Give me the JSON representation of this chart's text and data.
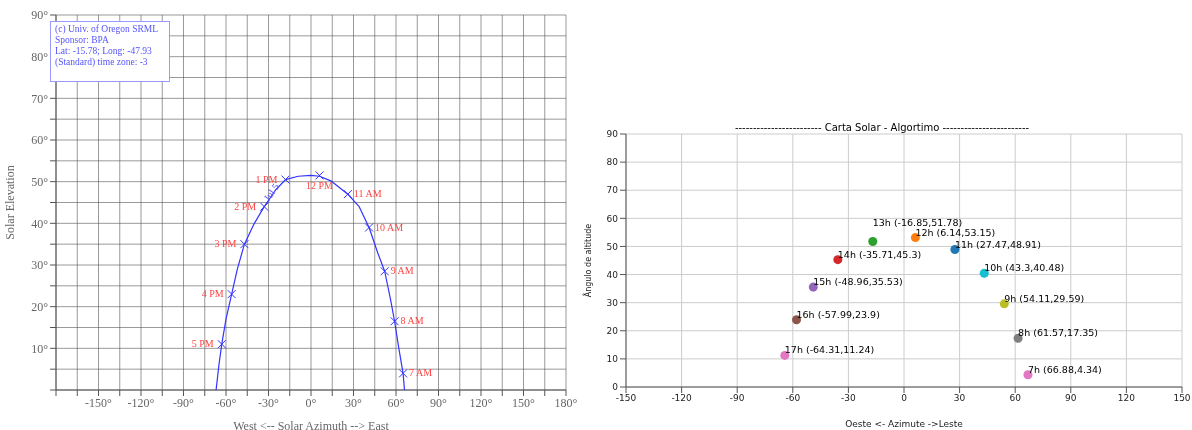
{
  "chart_data": [
    {
      "type": "line",
      "xlabel": "West <-- Solar Azimuth --> East",
      "ylabel": "Solar Elevation",
      "xlim": [
        -180,
        180
      ],
      "ylim": [
        0,
        90
      ],
      "xticks": [
        {
          "value": -180,
          "label": null
        },
        {
          "value": -165,
          "label": null
        },
        {
          "value": -150,
          "label": "-150°"
        },
        {
          "value": -135,
          "label": null
        },
        {
          "value": -120,
          "label": "-120°"
        },
        {
          "value": -105,
          "label": null
        },
        {
          "value": -90,
          "label": "-90°"
        },
        {
          "value": -75,
          "label": null
        },
        {
          "value": -60,
          "label": "-60°"
        },
        {
          "value": -45,
          "label": null
        },
        {
          "value": -30,
          "label": "-30°"
        },
        {
          "value": -15,
          "label": null
        },
        {
          "value": 0,
          "label": "0°"
        },
        {
          "value": 15,
          "label": null
        },
        {
          "value": 30,
          "label": "30°"
        },
        {
          "value": 45,
          "label": null
        },
        {
          "value": 60,
          "label": "60°"
        },
        {
          "value": 75,
          "label": null
        },
        {
          "value": 90,
          "label": "90°"
        },
        {
          "value": 105,
          "label": null
        },
        {
          "value": 120,
          "label": "120°"
        },
        {
          "value": 135,
          "label": null
        },
        {
          "value": 150,
          "label": "150°"
        },
        {
          "value": 165,
          "label": null
        },
        {
          "value": 180,
          "label": "180°"
        }
      ],
      "yticks": [
        {
          "value": 0,
          "label": null
        },
        {
          "value": 5,
          "label": null
        },
        {
          "value": 10,
          "label": "10°"
        },
        {
          "value": 15,
          "label": null
        },
        {
          "value": 20,
          "label": "20°"
        },
        {
          "value": 25,
          "label": null
        },
        {
          "value": 30,
          "label": "30°"
        },
        {
          "value": 35,
          "label": null
        },
        {
          "value": 40,
          "label": "40°"
        },
        {
          "value": 45,
          "label": null
        },
        {
          "value": 50,
          "label": "50°"
        },
        {
          "value": 55,
          "label": null
        },
        {
          "value": 60,
          "label": "60°"
        },
        {
          "value": 65,
          "label": null
        },
        {
          "value": 70,
          "label": "70°"
        },
        {
          "value": 75,
          "label": null
        },
        {
          "value": 80,
          "label": "80°"
        },
        {
          "value": 85,
          "label": null
        },
        {
          "value": 90,
          "label": "90°"
        }
      ],
      "grid": true,
      "series": [
        {
          "color": "#3333ff",
          "marker": "none",
          "x": [
            -67,
            -65,
            -63,
            -60,
            -56,
            -52,
            -47,
            -40,
            -33,
            -25,
            -18,
            -9,
            0,
            6,
            14,
            26,
            34,
            41,
            47,
            52,
            56,
            59,
            62,
            65,
            66
          ],
          "values": [
            0,
            6,
            11,
            17,
            23,
            29,
            35,
            40,
            44,
            48,
            50.5,
            51.3,
            51.5,
            51.3,
            50.2,
            47,
            44,
            39,
            33,
            28.5,
            22,
            16.5,
            10,
            4,
            0
          ]
        },
        {
          "type": "scatter",
          "color": "#3333ff",
          "marker": "cross",
          "x": [
            65,
            59,
            52,
            41,
            26,
            6,
            -18,
            -33,
            -47,
            -56,
            -63
          ],
          "values": [
            4,
            16.5,
            28.5,
            39,
            47,
            51.5,
            50.5,
            44,
            35,
            23,
            11
          ]
        }
      ],
      "annotations": [
        "(c) Univ. of Oregon SRML",
        "Sponsor: BPA",
        "Lat: -15.78; Long: -47.93",
        "(Standard) time zone: -3",
        {
          "text": "Jul 5",
          "x": -26,
          "y": 47
        },
        {
          "text": "7 AM",
          "x": 65,
          "y": 4
        },
        {
          "text": "8 AM",
          "x": 59,
          "y": 16.5
        },
        {
          "text": "9 AM",
          "x": 52,
          "y": 28.5
        },
        {
          "text": "10 AM",
          "x": 41,
          "y": 39
        },
        {
          "text": "11 AM",
          "x": 26,
          "y": 47
        },
        {
          "text": "12 PM",
          "x": 6,
          "y": 51.5
        },
        {
          "text": "1 PM",
          "x": -18,
          "y": 50.5
        },
        {
          "text": "2 PM",
          "x": -33,
          "y": 44
        },
        {
          "text": "3 PM",
          "x": -47,
          "y": 35
        },
        {
          "text": "4 PM",
          "x": -56,
          "y": 23
        },
        {
          "text": "5 PM",
          "x": -63,
          "y": 11
        }
      ]
    },
    {
      "type": "scatter",
      "title": "------------------------ Carta Solar - Algortimo ------------------------",
      "xlabel": "Oeste <-    Azimute    ->Leste",
      "ylabel": "Ângulo de altitude",
      "xlim": [
        -150,
        150
      ],
      "xticks": [
        -150,
        -120,
        -90,
        -60,
        -30,
        0,
        30,
        60,
        90,
        120,
        150
      ],
      "ylim": [
        0,
        90
      ],
      "yticks": [
        0,
        10,
        20,
        30,
        40,
        50,
        60,
        70,
        80,
        90
      ],
      "grid": true,
      "marker": "circle",
      "x": [
        66.88,
        61.57,
        54.11,
        43.3,
        27.47,
        6.14,
        -16.85,
        -35.71,
        -48.96,
        -57.99,
        -64.31
      ],
      "values": [
        4.34,
        17.35,
        29.59,
        40.48,
        48.91,
        53.15,
        51.78,
        45.3,
        35.53,
        23.9,
        11.24
      ],
      "colors": [
        "#e377c2",
        "#7f7f7f",
        "#bcbd22",
        "#17becf",
        "#1f77b4",
        "#ff7f0e",
        "#2ca02c",
        "#d62728",
        "#9467bd",
        "#8c564b",
        "#e377c2"
      ],
      "value_labels": [
        "7h (66.88,4.34)",
        "8h (61.57,17.35)",
        "9h (54.11,29.59)",
        "10h (43.3,40.48)",
        "11h (27.47,48.91)",
        "12h (6.14,53.15)",
        "13h (-16.85,51.78)",
        "14h (-35.71,45.3)",
        "15h (-48.96,35.53)",
        "16h (-57.99,23.9)",
        "17h (-64.31,11.24)"
      ]
    }
  ]
}
